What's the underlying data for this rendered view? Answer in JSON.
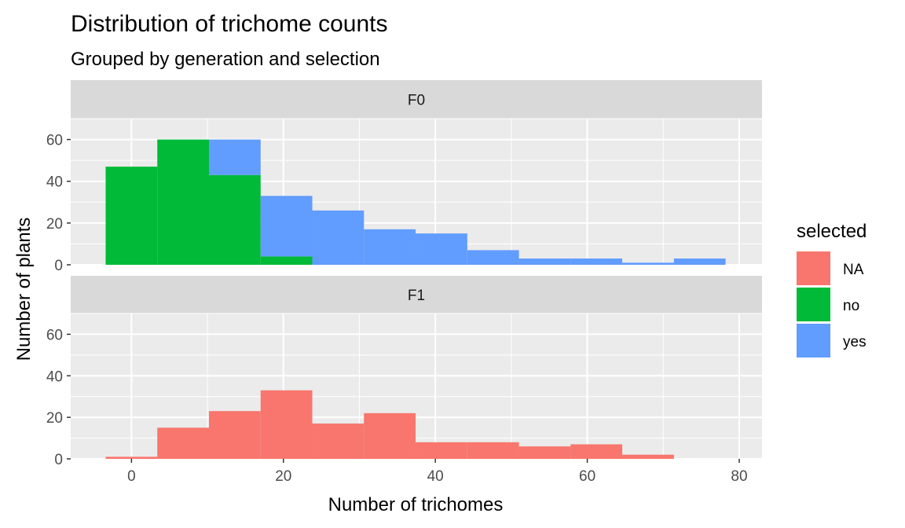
{
  "chart_data": {
    "type": "bar",
    "title": "Distribution of trichome counts",
    "subtitle": "Grouped by generation and selection",
    "xlabel": "Number of trichomes",
    "ylabel": "Number of plants",
    "xlim": [
      -8,
      83
    ],
    "ylim": [
      0,
      70
    ],
    "x_ticks": [
      0,
      20,
      40,
      60,
      80
    ],
    "y_ticks": [
      0,
      20,
      40,
      60
    ],
    "bin_width": 6.8,
    "legend": {
      "title": "selected",
      "position": "right",
      "entries": [
        {
          "label": "NA",
          "color": "#F8766D"
        },
        {
          "label": "no",
          "color": "#00BA38"
        },
        {
          "label": "yes",
          "color": "#619CFF"
        }
      ]
    },
    "panels": [
      {
        "label": "F0",
        "series": [
          {
            "name": "no",
            "color": "#00BA38",
            "bins": [
              {
                "x0": -3.4,
                "x1": 3.4,
                "value": 47
              },
              {
                "x0": 3.4,
                "x1": 10.2,
                "value": 60
              },
              {
                "x0": 10.2,
                "x1": 17.0,
                "value": 43
              },
              {
                "x0": 17.0,
                "x1": 23.8,
                "value": 4
              }
            ]
          },
          {
            "name": "yes",
            "color": "#619CFF",
            "bins": [
              {
                "x0": 10.2,
                "x1": 17.0,
                "value": 17
              },
              {
                "x0": 17.0,
                "x1": 23.8,
                "value": 29
              },
              {
                "x0": 23.8,
                "x1": 30.6,
                "value": 26
              },
              {
                "x0": 30.6,
                "x1": 37.4,
                "value": 17
              },
              {
                "x0": 37.4,
                "x1": 44.2,
                "value": 15
              },
              {
                "x0": 44.2,
                "x1": 51.0,
                "value": 7
              },
              {
                "x0": 51.0,
                "x1": 57.8,
                "value": 3
              },
              {
                "x0": 57.8,
                "x1": 64.6,
                "value": 3
              },
              {
                "x0": 64.6,
                "x1": 71.4,
                "value": 1
              },
              {
                "x0": 71.4,
                "x1": 78.2,
                "value": 3
              }
            ]
          }
        ]
      },
      {
        "label": "F1",
        "series": [
          {
            "name": "NA",
            "color": "#F8766D",
            "bins": [
              {
                "x0": -3.4,
                "x1": 3.4,
                "value": 1
              },
              {
                "x0": 3.4,
                "x1": 10.2,
                "value": 15
              },
              {
                "x0": 10.2,
                "x1": 17.0,
                "value": 23
              },
              {
                "x0": 17.0,
                "x1": 23.8,
                "value": 33
              },
              {
                "x0": 23.8,
                "x1": 30.6,
                "value": 17
              },
              {
                "x0": 30.6,
                "x1": 37.4,
                "value": 22
              },
              {
                "x0": 37.4,
                "x1": 44.2,
                "value": 8
              },
              {
                "x0": 44.2,
                "x1": 51.0,
                "value": 8
              },
              {
                "x0": 51.0,
                "x1": 57.8,
                "value": 6
              },
              {
                "x0": 57.8,
                "x1": 64.6,
                "value": 7
              },
              {
                "x0": 64.6,
                "x1": 71.4,
                "value": 2
              }
            ]
          }
        ]
      }
    ]
  }
}
